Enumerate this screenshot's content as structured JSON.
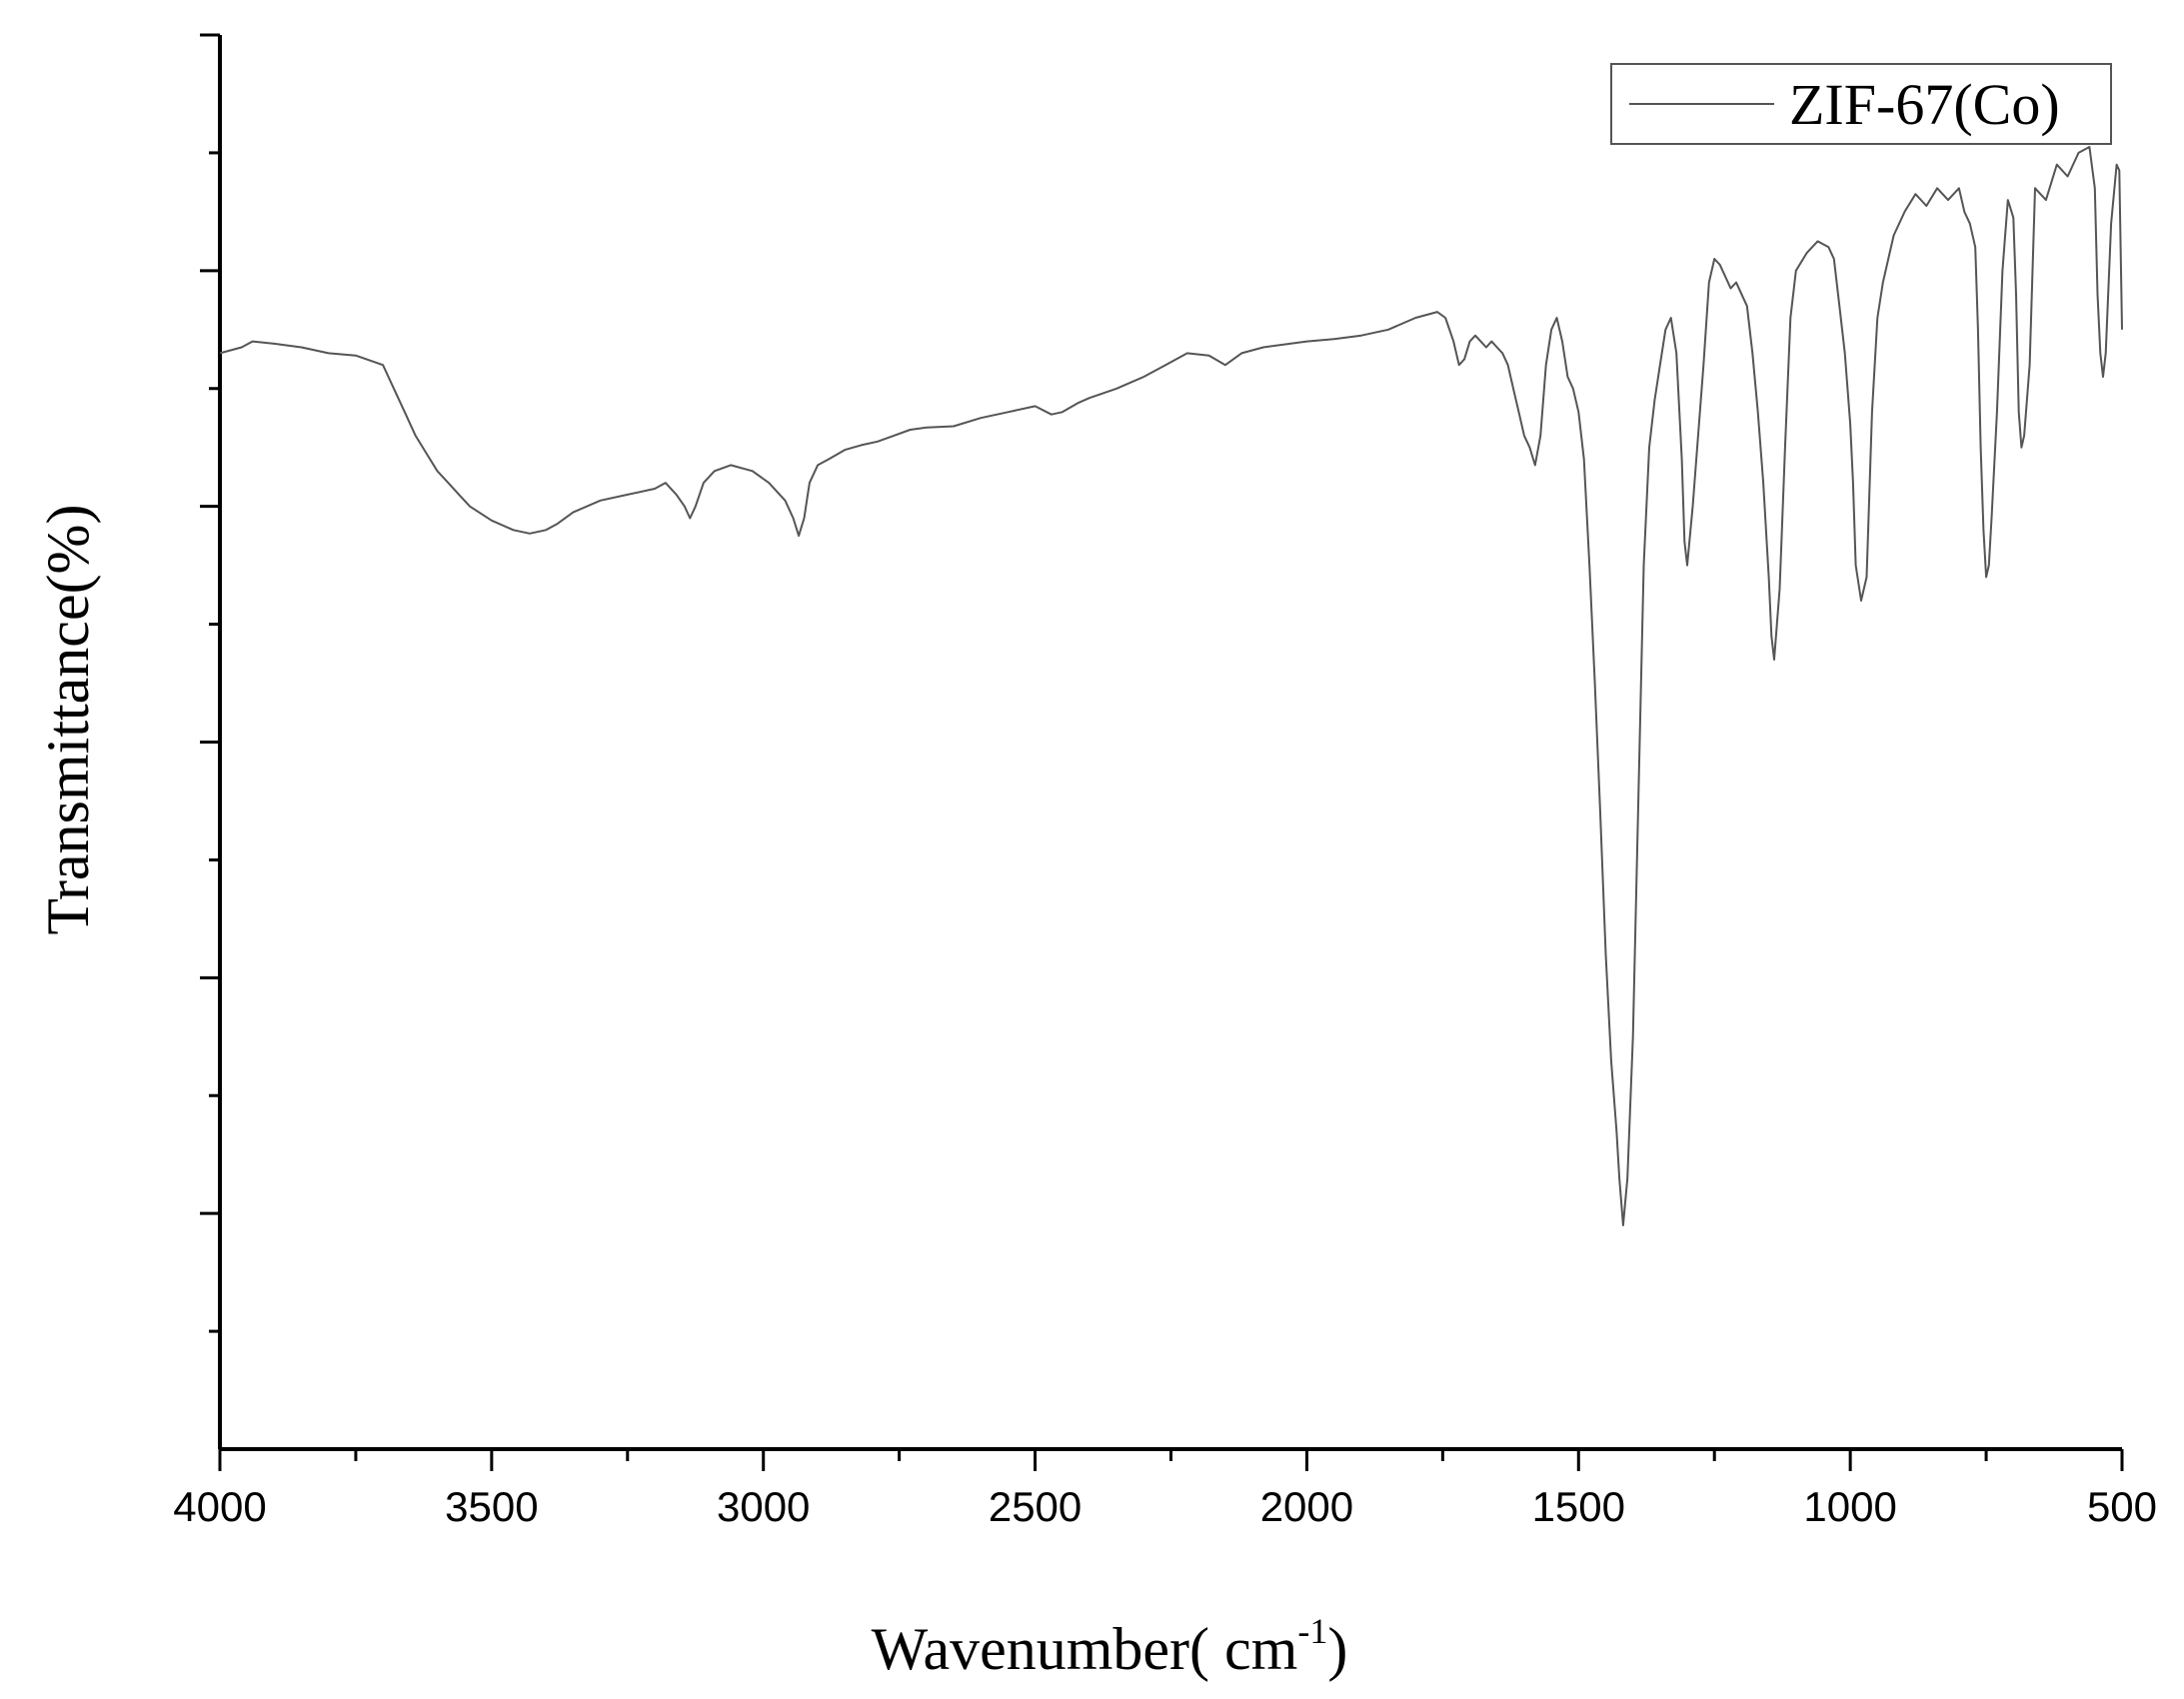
{
  "chart_data": {
    "type": "line",
    "xlabel": "Wavenumber( cm",
    "xlabel_sup": "-1",
    "xlabel_close": ")",
    "ylabel": "Transmittance(%)",
    "xlim": [
      4000,
      500
    ],
    "ylim": [
      0,
      12
    ],
    "x_reversed": true,
    "x_ticks": [
      "4000",
      "3500",
      "3000",
      "2500",
      "2000",
      "1500",
      "1000",
      "500"
    ],
    "y_tick_labels_shown": false,
    "grid": false,
    "legend": "top-right",
    "colors": {
      "line": "#555555",
      "axis": "#000000"
    },
    "series": [
      {
        "name": "ZIF-67(Co)",
        "x": [
          4000,
          3960,
          3940,
          3900,
          3850,
          3800,
          3750,
          3700,
          3680,
          3660,
          3640,
          3620,
          3600,
          3580,
          3560,
          3540,
          3500,
          3460,
          3430,
          3400,
          3380,
          3350,
          3300,
          3250,
          3200,
          3180,
          3160,
          3145,
          3135,
          3125,
          3110,
          3090,
          3060,
          3020,
          2990,
          2960,
          2945,
          2935,
          2925,
          2915,
          2900,
          2880,
          2850,
          2820,
          2790,
          2760,
          2730,
          2700,
          2650,
          2600,
          2550,
          2500,
          2470,
          2450,
          2420,
          2400,
          2350,
          2300,
          2260,
          2220,
          2180,
          2150,
          2120,
          2080,
          2000,
          1950,
          1900,
          1850,
          1800,
          1760,
          1745,
          1730,
          1720,
          1710,
          1700,
          1690,
          1680,
          1670,
          1660,
          1650,
          1640,
          1630,
          1620,
          1610,
          1600,
          1590,
          1580,
          1570,
          1560,
          1550,
          1540,
          1530,
          1520,
          1510,
          1500,
          1490,
          1480,
          1470,
          1460,
          1450,
          1440,
          1430,
          1425,
          1418,
          1410,
          1400,
          1390,
          1380,
          1370,
          1360,
          1350,
          1340,
          1330,
          1320,
          1310,
          1305,
          1300,
          1290,
          1280,
          1270,
          1260,
          1250,
          1240,
          1230,
          1220,
          1210,
          1200,
          1190,
          1180,
          1170,
          1160,
          1150,
          1145,
          1140,
          1130,
          1120,
          1110,
          1100,
          1080,
          1060,
          1040,
          1030,
          1020,
          1010,
          1000,
          995,
          990,
          980,
          970,
          960,
          950,
          940,
          930,
          920,
          900,
          880,
          860,
          840,
          820,
          800,
          790,
          780,
          770,
          765,
          760,
          755,
          750,
          745,
          740,
          730,
          720,
          710,
          700,
          695,
          690,
          685,
          680,
          670,
          660,
          640,
          620,
          600,
          580,
          560,
          550,
          545,
          540,
          535,
          530,
          520,
          510,
          505,
          500
        ],
        "y": [
          9.3,
          9.35,
          9.4,
          9.38,
          9.35,
          9.3,
          9.28,
          9.2,
          9.0,
          8.8,
          8.6,
          8.45,
          8.3,
          8.2,
          8.1,
          8.0,
          7.88,
          7.8,
          7.77,
          7.8,
          7.85,
          7.95,
          8.05,
          8.1,
          8.15,
          8.2,
          8.1,
          8.0,
          7.9,
          8.0,
          8.2,
          8.3,
          8.35,
          8.3,
          8.2,
          8.05,
          7.9,
          7.75,
          7.9,
          8.2,
          8.35,
          8.4,
          8.48,
          8.52,
          8.55,
          8.6,
          8.65,
          8.67,
          8.68,
          8.75,
          8.8,
          8.85,
          8.78,
          8.8,
          8.88,
          8.92,
          9.0,
          9.1,
          9.2,
          9.3,
          9.28,
          9.2,
          9.3,
          9.35,
          9.4,
          9.42,
          9.45,
          9.5,
          9.6,
          9.65,
          9.6,
          9.4,
          9.2,
          9.25,
          9.4,
          9.45,
          9.4,
          9.35,
          9.4,
          9.35,
          9.3,
          9.2,
          9.0,
          8.8,
          8.6,
          8.5,
          8.35,
          8.6,
          9.2,
          9.5,
          9.6,
          9.4,
          9.1,
          9.0,
          8.8,
          8.4,
          7.5,
          6.5,
          5.4,
          4.2,
          3.3,
          2.7,
          2.3,
          1.9,
          2.3,
          3.5,
          5.5,
          7.5,
          8.5,
          8.9,
          9.2,
          9.5,
          9.6,
          9.3,
          8.4,
          7.7,
          7.5,
          8.0,
          8.6,
          9.2,
          9.9,
          10.1,
          10.05,
          9.95,
          9.85,
          9.9,
          9.8,
          9.7,
          9.3,
          8.8,
          8.2,
          7.4,
          6.9,
          6.7,
          7.3,
          8.5,
          9.6,
          10.0,
          10.15,
          10.25,
          10.2,
          10.1,
          9.7,
          9.3,
          8.7,
          8.2,
          7.5,
          7.2,
          7.4,
          8.8,
          9.6,
          9.9,
          10.1,
          10.3,
          10.5,
          10.65,
          10.55,
          10.7,
          10.6,
          10.7,
          10.5,
          10.4,
          10.2,
          9.5,
          8.5,
          7.8,
          7.4,
          7.5,
          7.9,
          8.8,
          10.0,
          10.6,
          10.45,
          9.8,
          8.8,
          8.5,
          8.6,
          9.2,
          10.7,
          10.6,
          10.9,
          10.8,
          11.0,
          11.05,
          10.7,
          9.8,
          9.3,
          9.1,
          9.3,
          10.4,
          10.9,
          10.85,
          9.5
        ]
      }
    ]
  }
}
